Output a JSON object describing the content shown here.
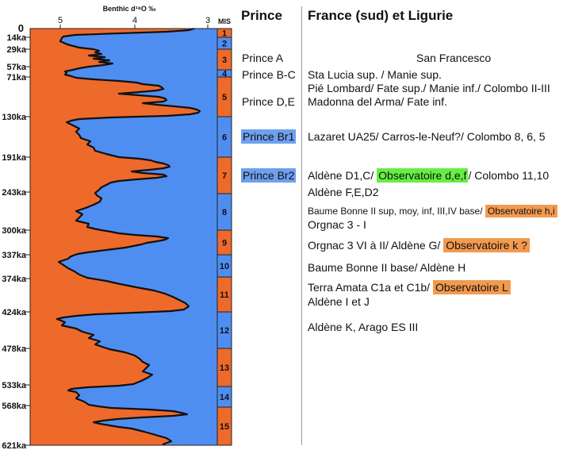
{
  "curve": {
    "axis_title": "Benthic d¹⁸O ‰",
    "axis_ticks": [
      "5",
      "4",
      "3"
    ],
    "zero_label": "0",
    "mis_header": "MIS",
    "time_labels": [
      "14ka",
      "29ka",
      "57ka",
      "71ka",
      "130ka",
      "191ka",
      "243ka",
      "300ka",
      "337ka",
      "374ka",
      "424ka",
      "478ka",
      "533ka",
      "568ka",
      "621ka"
    ],
    "colors": {
      "warm": "#ee6a2b",
      "cold": "#4f8ef1",
      "curve": "#111111"
    }
  },
  "mis_stages": [
    "1",
    "2",
    "3",
    "4",
    "5",
    "6",
    "7",
    "8",
    "9",
    "10",
    "11",
    "12",
    "13",
    "14",
    "15"
  ],
  "headers": {
    "prince": "Prince",
    "france": "France (sud) et Ligurie"
  },
  "prince_labels": {
    "a": "Prince A",
    "bc": "Prince B-C",
    "de": "Prince D,E",
    "br1": "Prince Br1",
    "br2": "Prince Br2"
  },
  "france": {
    "san_francesco": "San Francesco",
    "sta_lucia": "Sta Lucia sup. / Manie sup.",
    "pie_lombard": "Pié Lombard/ Fate sup./ Manie inf./ Colombo II-III",
    "madonna": "Madonna del Arma/ Fate inf.",
    "lazaret": "Lazaret UA25/ Carros-le-Neuf?/ Colombo 8, 6, 5",
    "aldene_d1_a": "Aldène D1,C/",
    "obs_def": "Observatoire d,e,f",
    "aldene_d1_b": "/ Colombo 11,10",
    "aldene_f": "Aldène F,E,D2",
    "baume_a": "Baume Bonne II sup, moy, inf, III,IV base/",
    "obs_hi": "Observatoire h,i",
    "orgnac_i": "Orgnac 3 - I",
    "orgnac_vi": "Orgnac 3 VI à II/ Aldène G/",
    "obs_k": "Observatoire k ?",
    "baume_base": "Baume Bonne II base/ Aldène H",
    "terra_a": "Terra Amata C1a et C1b/",
    "obs_l": "Observatoire L",
    "aldene_ij": "Aldène  I et J",
    "aldene_k": "Aldène K, Arago ES III"
  }
}
